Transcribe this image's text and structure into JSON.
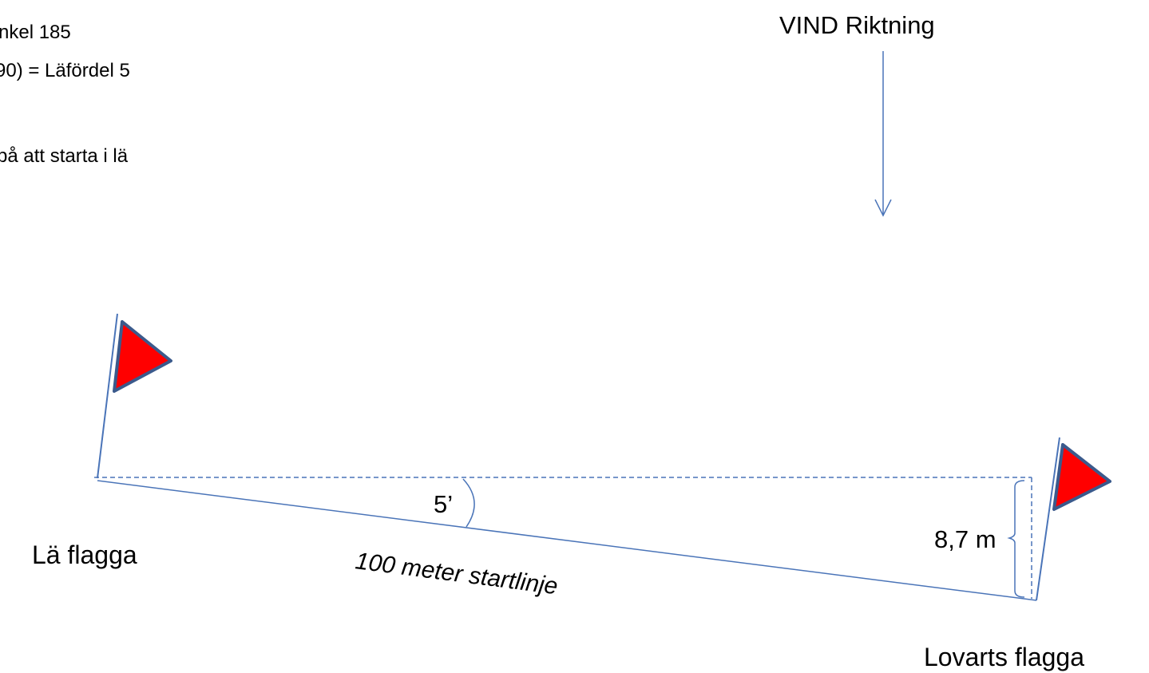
{
  "notes": {
    "line1": "nkel 185",
    "line2": "90) = Läfördel 5",
    "line3": "på att starta i lä"
  },
  "wind": {
    "label": "VIND Riktning"
  },
  "leeward_flag": {
    "label": "Lä flagga"
  },
  "windward_flag": {
    "label": "Lovarts flagga"
  },
  "start_line": {
    "label": "100 meter startlinje"
  },
  "angle": {
    "label": "5’"
  },
  "offset": {
    "label": "8,7 m"
  },
  "colors": {
    "line": "#4a74b8",
    "flag_fill": "#ff0000",
    "flag_outline": "#3b5a8c"
  }
}
